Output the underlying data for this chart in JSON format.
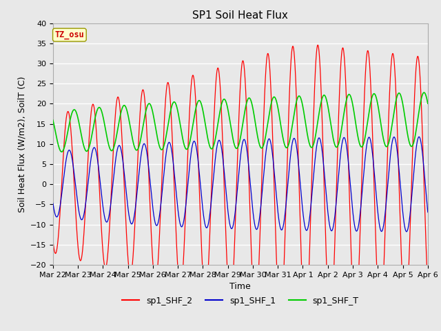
{
  "title": "SP1 Soil Heat Flux",
  "xlabel": "Time",
  "ylabel": "Soil Heat Flux (W/m2), SoilT (C)",
  "ylim": [
    -20,
    40
  ],
  "yticks": [
    -20,
    -15,
    -10,
    -5,
    0,
    5,
    10,
    15,
    20,
    25,
    30,
    35,
    40
  ],
  "xtick_labels": [
    "Mar 22",
    "Mar 23",
    "Mar 24",
    "Mar 25",
    "Mar 26",
    "Mar 27",
    "Mar 28",
    "Mar 29",
    "Mar 30",
    "Mar 31",
    "Apr 1",
    "Apr 2",
    "Apr 3",
    "Apr 4",
    "Apr 5",
    "Apr 6"
  ],
  "color_shf2": "#ff0000",
  "color_shf1": "#0000cc",
  "color_shft": "#00cc00",
  "legend_labels": [
    "sp1_SHF_2",
    "sp1_SHF_1",
    "sp1_SHF_T"
  ],
  "annotation_text": "TZ_osu",
  "annotation_color": "#cc0000",
  "annotation_bg": "#ffffcc",
  "plot_bg_color": "#e8e8e8",
  "fig_bg_color": "#e8e8e8",
  "grid_color": "#ffffff",
  "title_fontsize": 11,
  "label_fontsize": 9,
  "tick_fontsize": 8,
  "legend_fontsize": 9
}
